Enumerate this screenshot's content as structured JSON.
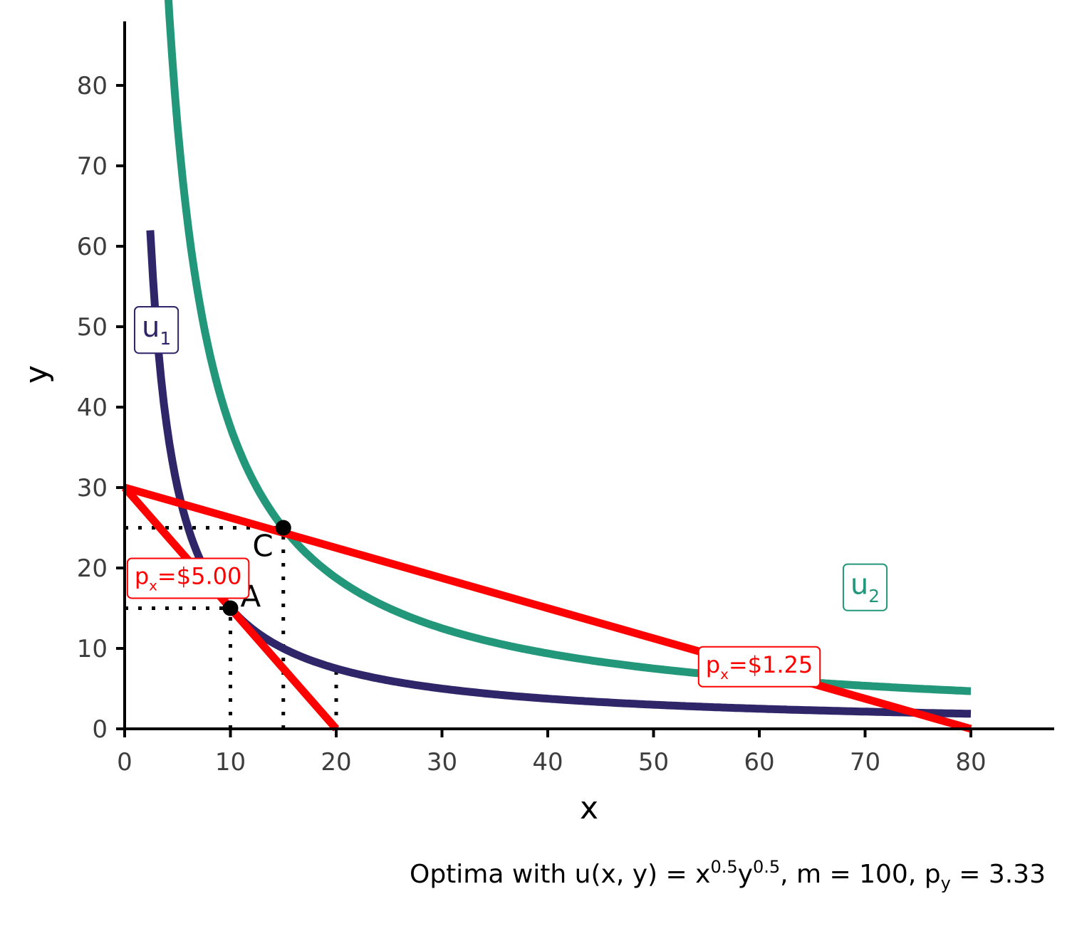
{
  "chart_data": {
    "type": "line",
    "xlabel": "x",
    "ylabel": "y",
    "xlim": [
      0,
      88
    ],
    "ylim": [
      0,
      88
    ],
    "xticks": [
      0,
      10,
      20,
      30,
      40,
      50,
      60,
      70,
      80
    ],
    "yticks": [
      0,
      10,
      20,
      30,
      40,
      50,
      60,
      70,
      80
    ],
    "grid": false,
    "caption": {
      "pre": "Optima with u(x, y) = x",
      "exp1": "0.5",
      "mid": "y",
      "exp2": "0.5",
      "post1": ", m = 100, p",
      "sub": "y",
      "post2": " = 3.33"
    },
    "colors": {
      "u1": "#2f2569",
      "u2": "#23977a",
      "budget": "#ff0000",
      "points": "#000000",
      "guides": "#000000"
    },
    "indifference_curves": [
      {
        "id": "u1",
        "label": "u",
        "label_sub": "1",
        "k": 150,
        "x_range": [
          2.42,
          80
        ],
        "label_at": [
          3,
          50
        ]
      },
      {
        "id": "u2",
        "label": "u",
        "label_sub": "2",
        "k": 375,
        "x_range": [
          2.42,
          80
        ],
        "label_at": [
          70,
          18
        ]
      }
    ],
    "budget_lines": [
      {
        "id": "px5",
        "label_pre": "p",
        "label_sub": "x",
        "label_post": "=$5.00",
        "points": [
          [
            0,
            30
          ],
          [
            20,
            0
          ]
        ],
        "label_at": [
          6,
          19
        ]
      },
      {
        "id": "px125",
        "label_pre": "p",
        "label_sub": "x",
        "label_post": "=$1.25",
        "points": [
          [
            0,
            30
          ],
          [
            80,
            0
          ]
        ],
        "label_at": [
          60,
          8
        ]
      }
    ],
    "optima": [
      {
        "label": "A",
        "x": 10,
        "y": 15,
        "label_offset": "right"
      },
      {
        "label": "C",
        "x": 15,
        "y": 25,
        "label_offset": "below-left"
      }
    ],
    "guides": [
      {
        "from": [
          0,
          15
        ],
        "to": [
          10,
          15
        ]
      },
      {
        "from": [
          10,
          0
        ],
        "to": [
          10,
          15
        ]
      },
      {
        "from": [
          0,
          25
        ],
        "to": [
          15,
          25
        ]
      },
      {
        "from": [
          15,
          0
        ],
        "to": [
          15,
          25
        ]
      },
      {
        "from": [
          20,
          0
        ],
        "to": [
          20,
          7.5
        ]
      }
    ]
  }
}
